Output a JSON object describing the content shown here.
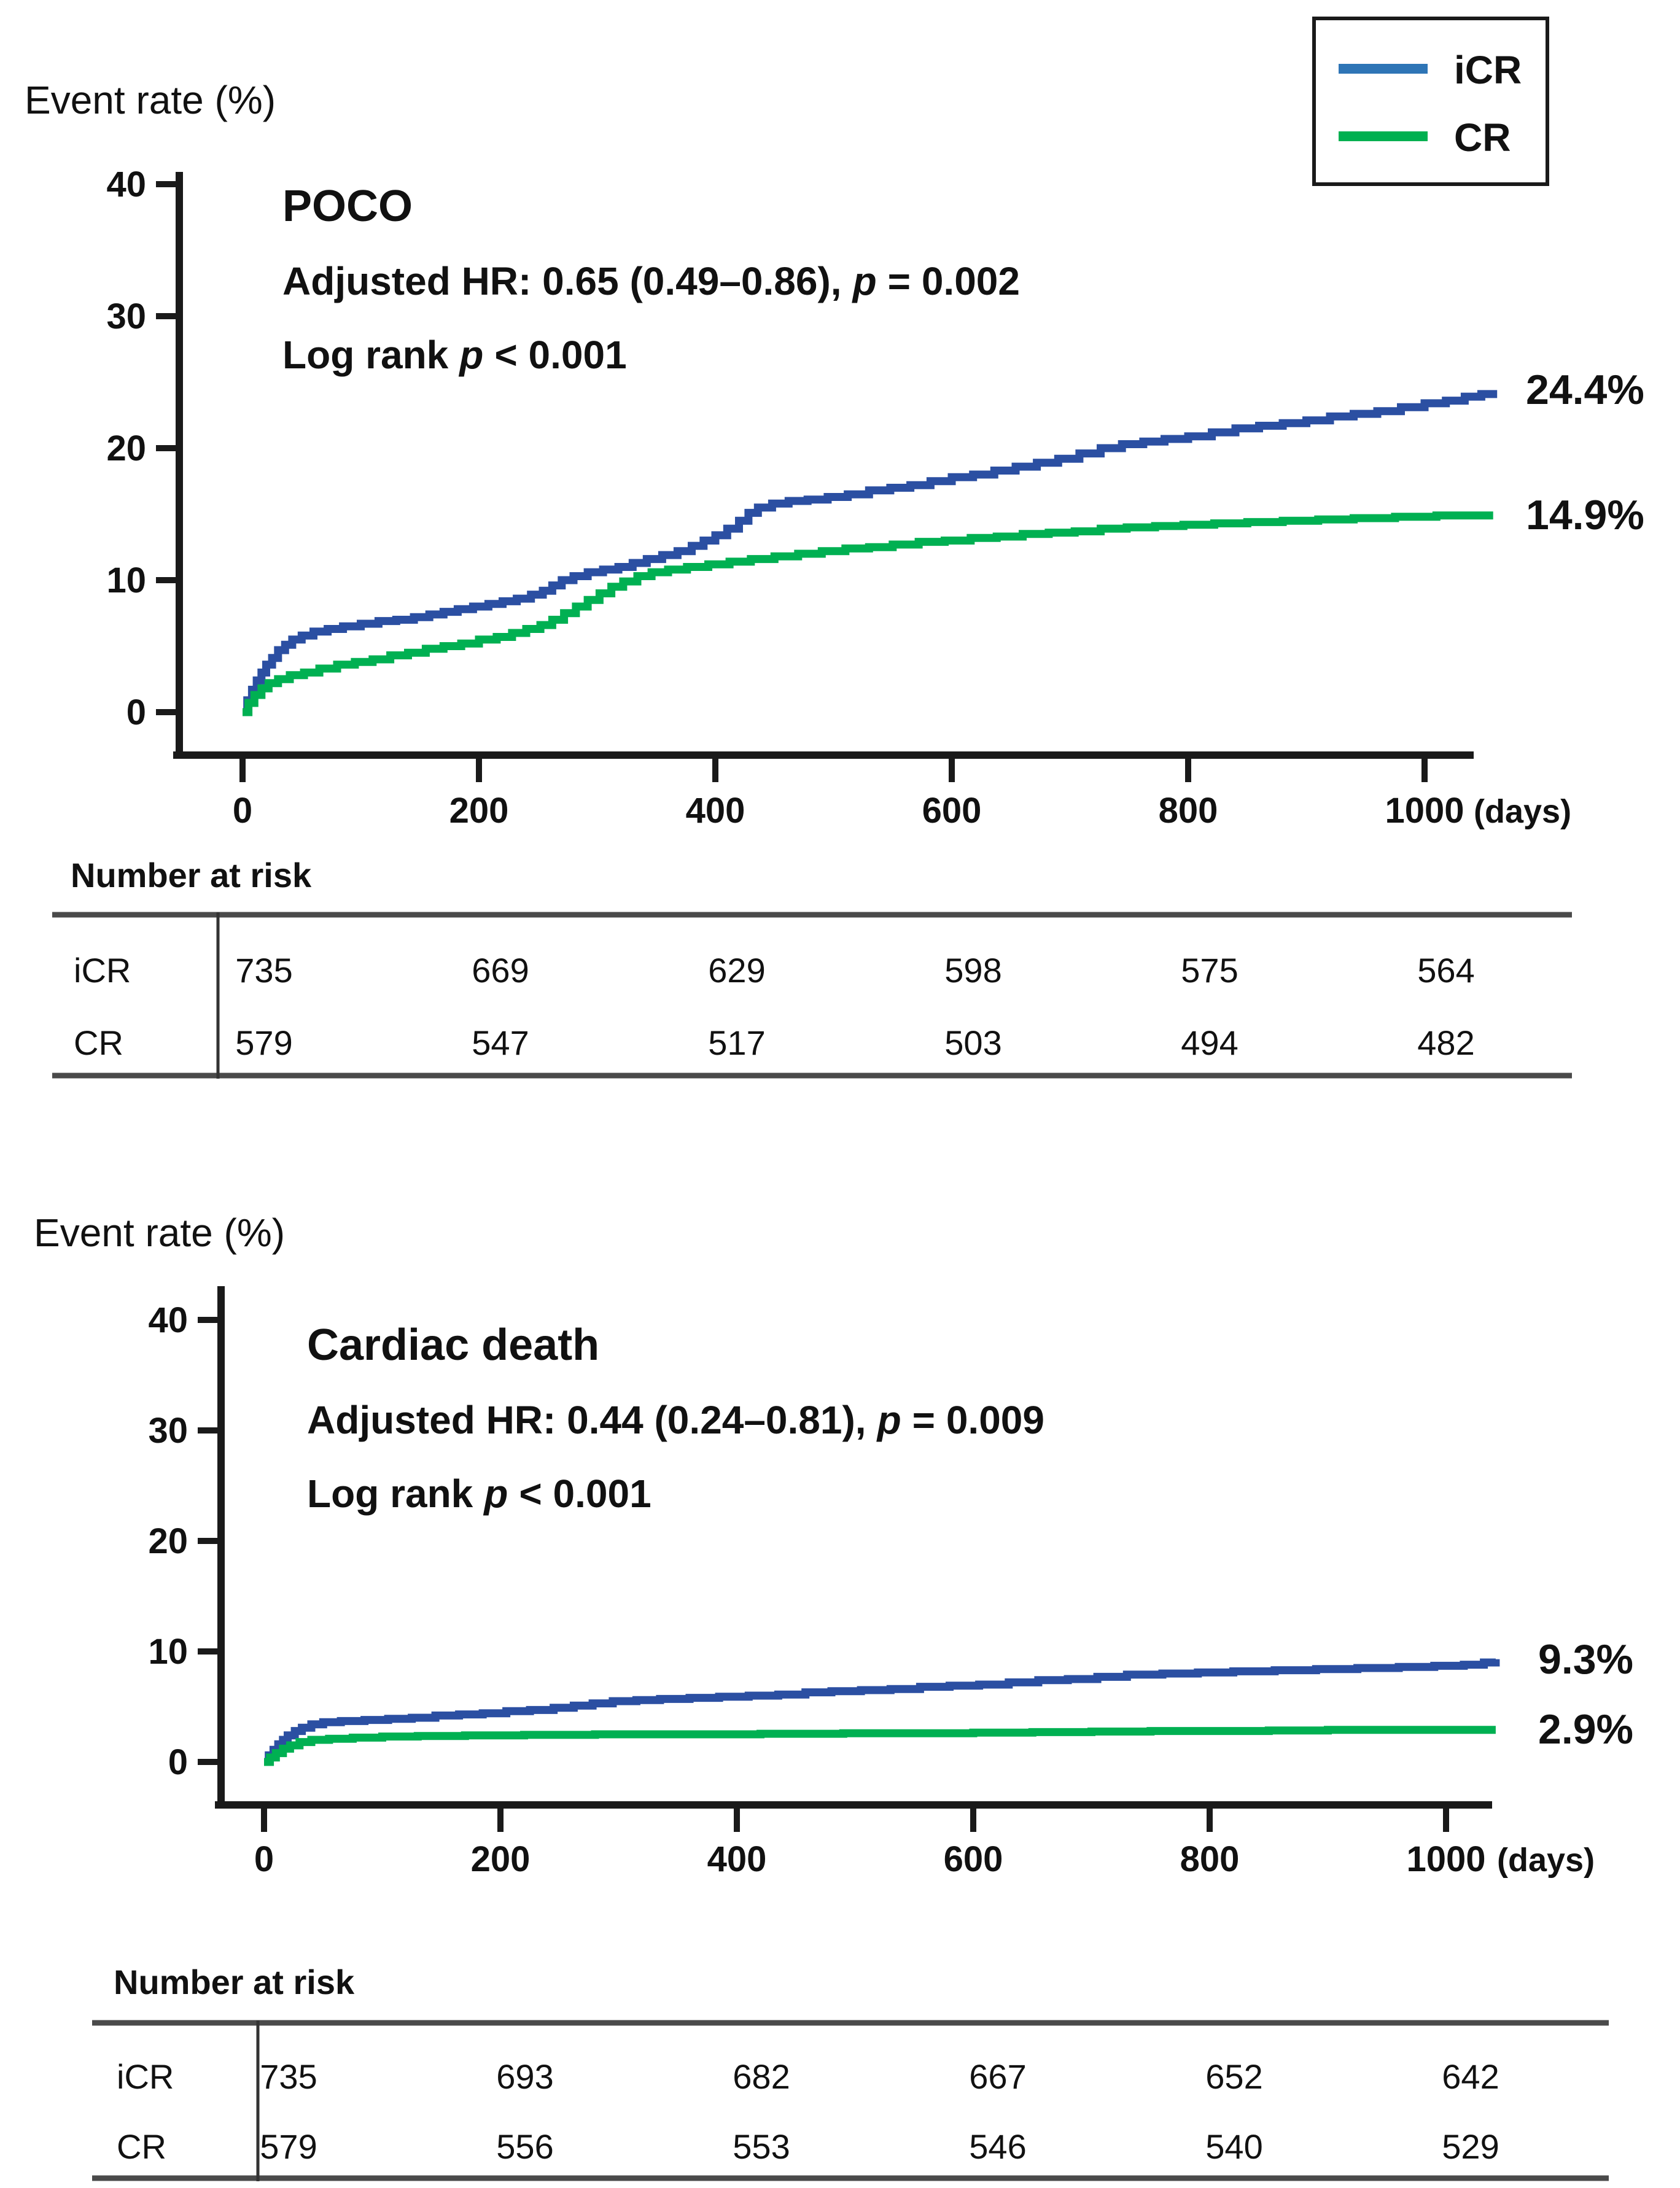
{
  "legend": {
    "position": "top-right",
    "items": [
      {
        "label": "iCR",
        "color": "#2E75B6"
      },
      {
        "label": "CR",
        "color": "#00B050"
      }
    ]
  },
  "chart_data": [
    {
      "type": "line",
      "subtype": "kaplan-meier-step-curves",
      "title": "POCO",
      "title_color": "#0535E6",
      "ylabel": "Event rate (%)",
      "hr_line": [
        "Adjusted HR: 0.65 (0.49–0.86),",
        "p",
        "= 0.002"
      ],
      "logrank_line": [
        "Log rank",
        "p",
        "< 0.001"
      ],
      "x_axis": {
        "ticks": [
          "0",
          "200",
          "400",
          "600",
          "800",
          "1000"
        ],
        "unit": "(days)",
        "range_days": [
          0,
          1060
        ],
        "grid": false
      },
      "y_axis": {
        "ticks": [
          "0",
          "10",
          "20",
          "30",
          "40"
        ],
        "range_pct": [
          0,
          42
        ],
        "grid": false
      },
      "series": [
        {
          "name": "iCR",
          "color": "#2B4FA2",
          "end_label": "24.4%",
          "label_color": "#1032CE",
          "final_pct": 24.4,
          "points": [
            [
              0,
              0
            ],
            [
              4,
              0.9
            ],
            [
              8,
              1.7
            ],
            [
              12,
              2.4
            ],
            [
              16,
              3.0
            ],
            [
              20,
              3.6
            ],
            [
              25,
              4.1
            ],
            [
              30,
              4.7
            ],
            [
              36,
              5.1
            ],
            [
              42,
              5.5
            ],
            [
              50,
              5.8
            ],
            [
              60,
              6.1
            ],
            [
              72,
              6.3
            ],
            [
              85,
              6.5
            ],
            [
              100,
              6.7
            ],
            [
              115,
              6.9
            ],
            [
              130,
              7.0
            ],
            [
              145,
              7.2
            ],
            [
              158,
              7.4
            ],
            [
              170,
              7.6
            ],
            [
              182,
              7.8
            ],
            [
              195,
              8.0
            ],
            [
              208,
              8.2
            ],
            [
              220,
              8.4
            ],
            [
              232,
              8.6
            ],
            [
              244,
              8.9
            ],
            [
              254,
              9.2
            ],
            [
              262,
              9.6
            ],
            [
              270,
              10.0
            ],
            [
              280,
              10.3
            ],
            [
              292,
              10.6
            ],
            [
              305,
              10.8
            ],
            [
              318,
              11.0
            ],
            [
              330,
              11.3
            ],
            [
              342,
              11.6
            ],
            [
              355,
              11.9
            ],
            [
              368,
              12.2
            ],
            [
              380,
              12.6
            ],
            [
              390,
              13.0
            ],
            [
              400,
              13.4
            ],
            [
              410,
              13.9
            ],
            [
              420,
              14.5
            ],
            [
              428,
              15.1
            ],
            [
              436,
              15.5
            ],
            [
              448,
              15.8
            ],
            [
              462,
              16.0
            ],
            [
              478,
              16.1
            ],
            [
              495,
              16.3
            ],
            [
              512,
              16.5
            ],
            [
              530,
              16.8
            ],
            [
              548,
              17.0
            ],
            [
              565,
              17.2
            ],
            [
              582,
              17.5
            ],
            [
              600,
              17.8
            ],
            [
              618,
              18.0
            ],
            [
              636,
              18.3
            ],
            [
              654,
              18.6
            ],
            [
              672,
              18.9
            ],
            [
              690,
              19.2
            ],
            [
              708,
              19.6
            ],
            [
              726,
              20.0
            ],
            [
              744,
              20.3
            ],
            [
              762,
              20.5
            ],
            [
              780,
              20.7
            ],
            [
              800,
              20.9
            ],
            [
              820,
              21.2
            ],
            [
              840,
              21.5
            ],
            [
              860,
              21.7
            ],
            [
              880,
              21.9
            ],
            [
              900,
              22.1
            ],
            [
              920,
              22.4
            ],
            [
              940,
              22.6
            ],
            [
              960,
              22.8
            ],
            [
              980,
              23.1
            ],
            [
              1000,
              23.4
            ],
            [
              1018,
              23.6
            ],
            [
              1034,
              23.9
            ],
            [
              1048,
              24.1
            ],
            [
              1058,
              24.4
            ]
          ]
        },
        {
          "name": "CR",
          "color": "#00B052",
          "end_label": "14.9%",
          "label_color": "#00A74E",
          "final_pct": 14.9,
          "points": [
            [
              0,
              0
            ],
            [
              5,
              0.7
            ],
            [
              10,
              1.3
            ],
            [
              16,
              1.8
            ],
            [
              22,
              2.2
            ],
            [
              30,
              2.5
            ],
            [
              40,
              2.8
            ],
            [
              52,
              3.0
            ],
            [
              65,
              3.3
            ],
            [
              80,
              3.6
            ],
            [
              95,
              3.8
            ],
            [
              110,
              4.0
            ],
            [
              125,
              4.3
            ],
            [
              140,
              4.5
            ],
            [
              155,
              4.8
            ],
            [
              170,
              5.0
            ],
            [
              185,
              5.2
            ],
            [
              200,
              5.5
            ],
            [
              215,
              5.7
            ],
            [
              228,
              6.0
            ],
            [
              240,
              6.3
            ],
            [
              252,
              6.6
            ],
            [
              262,
              7.0
            ],
            [
              272,
              7.5
            ],
            [
              282,
              8.0
            ],
            [
              292,
              8.5
            ],
            [
              302,
              9.0
            ],
            [
              312,
              9.5
            ],
            [
              322,
              9.9
            ],
            [
              334,
              10.3
            ],
            [
              346,
              10.6
            ],
            [
              360,
              10.8
            ],
            [
              376,
              11.0
            ],
            [
              394,
              11.2
            ],
            [
              412,
              11.4
            ],
            [
              430,
              11.6
            ],
            [
              450,
              11.8
            ],
            [
              470,
              12.0
            ],
            [
              490,
              12.2
            ],
            [
              510,
              12.4
            ],
            [
              530,
              12.5
            ],
            [
              550,
              12.7
            ],
            [
              572,
              12.9
            ],
            [
              594,
              13.0
            ],
            [
              616,
              13.2
            ],
            [
              638,
              13.3
            ],
            [
              660,
              13.5
            ],
            [
              682,
              13.6
            ],
            [
              704,
              13.7
            ],
            [
              726,
              13.9
            ],
            [
              748,
              14.0
            ],
            [
              772,
              14.1
            ],
            [
              796,
              14.2
            ],
            [
              822,
              14.3
            ],
            [
              850,
              14.4
            ],
            [
              880,
              14.5
            ],
            [
              910,
              14.6
            ],
            [
              940,
              14.7
            ],
            [
              975,
              14.8
            ],
            [
              1010,
              14.9
            ],
            [
              1058,
              14.9
            ]
          ]
        }
      ],
      "risk_table": {
        "title": "Number at risk",
        "rows": [
          {
            "label": "iCR",
            "values": [
              "735",
              "669",
              "629",
              "598",
              "575",
              "564"
            ]
          },
          {
            "label": "CR",
            "values": [
              "579",
              "547",
              "517",
              "503",
              "494",
              "482"
            ]
          }
        ]
      }
    },
    {
      "type": "line",
      "subtype": "kaplan-meier-step-curves",
      "title": "Cardiac death",
      "title_color": "#0535E6",
      "ylabel": "Event rate (%)",
      "hr_line": [
        "Adjusted HR: 0.44 (0.24–0.81),",
        "p",
        "= 0.009"
      ],
      "logrank_line": [
        "Log rank",
        "p",
        "< 0.001"
      ],
      "x_axis": {
        "ticks": [
          "0",
          "200",
          "400",
          "600",
          "800",
          "1000"
        ],
        "unit": "(days)",
        "range_days": [
          0,
          1042
        ],
        "grid": false
      },
      "y_axis": {
        "ticks": [
          "0",
          "10",
          "20",
          "30",
          "40"
        ],
        "range_pct": [
          0,
          42
        ],
        "grid": false
      },
      "series": [
        {
          "name": "iCR",
          "color": "#2B4FA2",
          "end_label": "9.3%",
          "label_color": "#1032CE",
          "final_pct": 9.3,
          "points": [
            [
              0,
              0
            ],
            [
              4,
              0.6
            ],
            [
              8,
              1.1
            ],
            [
              12,
              1.6
            ],
            [
              16,
              2.0
            ],
            [
              20,
              2.4
            ],
            [
              26,
              2.8
            ],
            [
              32,
              3.1
            ],
            [
              40,
              3.4
            ],
            [
              50,
              3.6
            ],
            [
              65,
              3.7
            ],
            [
              85,
              3.8
            ],
            [
              105,
              3.9
            ],
            [
              125,
              4.0
            ],
            [
              145,
              4.2
            ],
            [
              165,
              4.3
            ],
            [
              185,
              4.4
            ],
            [
              205,
              4.6
            ],
            [
              225,
              4.7
            ],
            [
              245,
              4.9
            ],
            [
              262,
              5.1
            ],
            [
              278,
              5.3
            ],
            [
              295,
              5.5
            ],
            [
              315,
              5.6
            ],
            [
              335,
              5.7
            ],
            [
              360,
              5.8
            ],
            [
              385,
              5.9
            ],
            [
              410,
              6.0
            ],
            [
              435,
              6.1
            ],
            [
              458,
              6.3
            ],
            [
              480,
              6.4
            ],
            [
              505,
              6.5
            ],
            [
              530,
              6.6
            ],
            [
              555,
              6.8
            ],
            [
              580,
              6.9
            ],
            [
              605,
              7.0
            ],
            [
              630,
              7.2
            ],
            [
              655,
              7.4
            ],
            [
              680,
              7.5
            ],
            [
              705,
              7.7
            ],
            [
              730,
              7.9
            ],
            [
              760,
              8.0
            ],
            [
              790,
              8.1
            ],
            [
              820,
              8.2
            ],
            [
              855,
              8.3
            ],
            [
              890,
              8.4
            ],
            [
              925,
              8.5
            ],
            [
              960,
              8.6
            ],
            [
              990,
              8.7
            ],
            [
              1015,
              8.8
            ],
            [
              1032,
              9.0
            ],
            [
              1042,
              9.3
            ]
          ]
        },
        {
          "name": "CR",
          "color": "#00B052",
          "end_label": "2.9%",
          "label_color": "#00A74E",
          "final_pct": 2.9,
          "points": [
            [
              0,
              0
            ],
            [
              5,
              0.4
            ],
            [
              10,
              0.8
            ],
            [
              16,
              1.2
            ],
            [
              22,
              1.5
            ],
            [
              30,
              1.8
            ],
            [
              40,
              2.0
            ],
            [
              55,
              2.1
            ],
            [
              75,
              2.2
            ],
            [
              100,
              2.3
            ],
            [
              130,
              2.35
            ],
            [
              170,
              2.4
            ],
            [
              220,
              2.45
            ],
            [
              280,
              2.5
            ],
            [
              350,
              2.5
            ],
            [
              420,
              2.55
            ],
            [
              490,
              2.6
            ],
            [
              550,
              2.6
            ],
            [
              600,
              2.65
            ],
            [
              650,
              2.7
            ],
            [
              700,
              2.75
            ],
            [
              750,
              2.8
            ],
            [
              800,
              2.8
            ],
            [
              850,
              2.85
            ],
            [
              900,
              2.9
            ],
            [
              950,
              2.9
            ],
            [
              1042,
              2.9
            ]
          ]
        }
      ],
      "risk_table": {
        "title": "Number at risk",
        "rows": [
          {
            "label": "iCR",
            "values": [
              "735",
              "693",
              "682",
              "667",
              "652",
              "642"
            ]
          },
          {
            "label": "CR",
            "values": [
              "579",
              "556",
              "553",
              "546",
              "540",
              "529"
            ]
          }
        ]
      }
    }
  ]
}
